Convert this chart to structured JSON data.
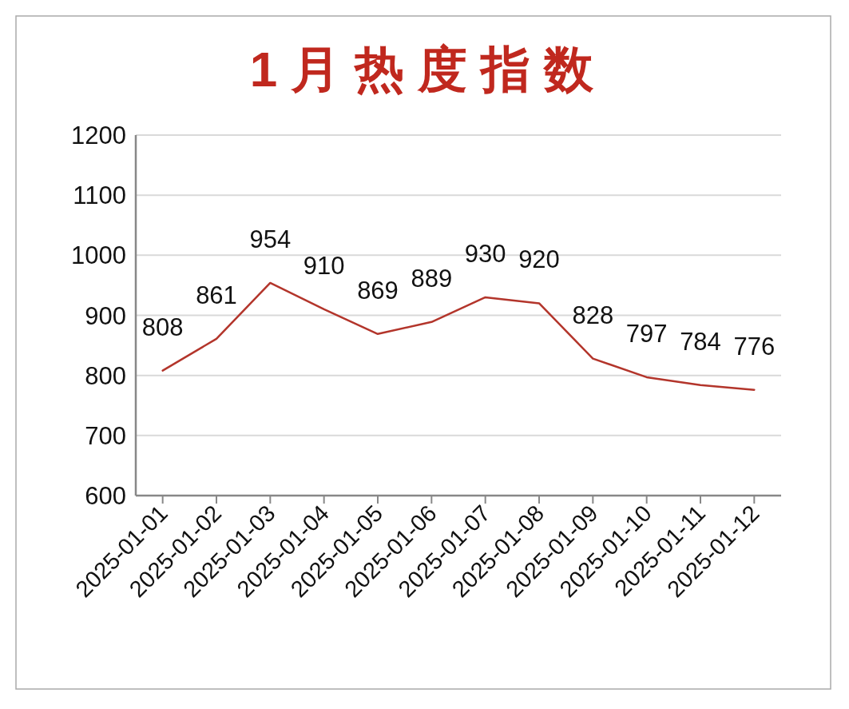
{
  "chart_data": {
    "type": "line",
    "title": "1 月 热 度 指 数",
    "categories": [
      "2025-01-01",
      "2025-01-02",
      "2025-01-03",
      "2025-01-04",
      "2025-01-05",
      "2025-01-06",
      "2025-01-07",
      "2025-01-08",
      "2025-01-09",
      "2025-01-10",
      "2025-01-11",
      "2025-01-12"
    ],
    "series": [
      {
        "color": "#b3352b",
        "values": [
          808,
          861,
          954,
          910,
          869,
          889,
          930,
          920,
          828,
          797,
          784,
          776
        ]
      }
    ],
    "ylim": [
      600,
      1200
    ],
    "yticks": [
      600,
      700,
      800,
      900,
      1000,
      1100,
      1200
    ],
    "grid": "y",
    "data_labels": true,
    "marker": "none",
    "line_style": "solid"
  }
}
